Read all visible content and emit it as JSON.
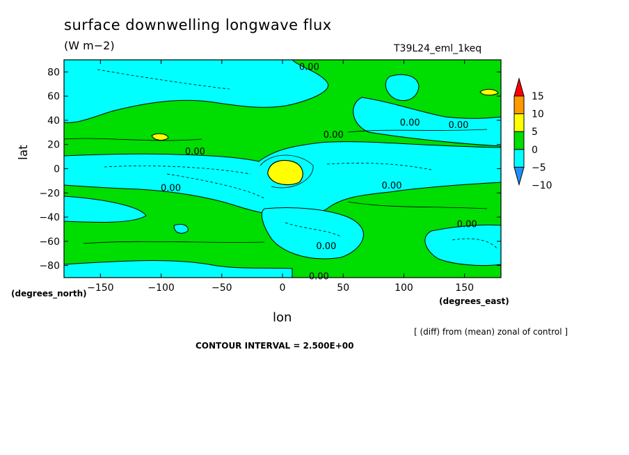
{
  "chart_data": {
    "type": "heatmap",
    "title": "surface downwelling longwave flux",
    "units": "(W m−2)",
    "run_label": "T39L24_eml_1keq",
    "xlabel": "lon",
    "ylabel": "lat",
    "x_units_label": "(degrees_east)",
    "y_units_label": "(degrees_north)",
    "xlim": [
      -180,
      180
    ],
    "ylim": [
      -90,
      90
    ],
    "x_ticks": [
      -150,
      -100,
      -50,
      0,
      50,
      100,
      150
    ],
    "y_ticks": [
      80,
      60,
      40,
      20,
      0,
      -20,
      -40,
      -60,
      -80
    ],
    "x_tick_labels": [
      "−150",
      "−100",
      "−50",
      "0",
      "50",
      "100",
      "150"
    ],
    "y_tick_labels": [
      "80",
      "60",
      "40",
      "20",
      "0",
      "−20",
      "−40",
      "−60",
      "−80"
    ],
    "colorbar": {
      "levels": [
        -10,
        -5,
        0,
        5,
        10,
        15
      ],
      "labels": [
        "15",
        "10",
        "5",
        "0",
        "−5",
        "−10"
      ],
      "colors": [
        "#1e90ff",
        "#00ffff",
        "#00dd00",
        "#ffff00",
        "#ff9900",
        "#ff0000"
      ]
    },
    "contour_labels": [
      {
        "text": "0.00",
        "lon": 22,
        "lat": 84
      },
      {
        "text": "0.00",
        "lon": 105,
        "lat": 38
      },
      {
        "text": "0.00",
        "lon": 145,
        "lat": 36
      },
      {
        "text": "0.00",
        "lon": 42,
        "lat": 28
      },
      {
        "text": "0.00",
        "lon": -72,
        "lat": 14
      },
      {
        "text": "0.00",
        "lon": -92,
        "lat": -16
      },
      {
        "text": "0.00",
        "lon": 90,
        "lat": -14
      },
      {
        "text": "0.00",
        "lon": 152,
        "lat": -46
      },
      {
        "text": "0.00",
        "lon": 36,
        "lat": -64
      },
      {
        "text": "0.00",
        "lon": 30,
        "lat": -89
      }
    ],
    "regions": [
      {
        "value": ">5",
        "lon_range": [
          -8,
          12
        ],
        "lat_range": [
          -10,
          6
        ],
        "color": "#ffff00"
      },
      {
        "value": ">5",
        "lon_range": [
          -102,
          -88
        ],
        "lat_range": [
          22,
          27
        ],
        "color": "#ffff00"
      },
      {
        "value": ">5",
        "lon_range": [
          162,
          176
        ],
        "lat_range": [
          58,
          62
        ],
        "color": "#ffff00"
      },
      {
        "value": "<0",
        "lon_range": [
          -180,
          180
        ],
        "lat_range": [
          -15,
          15
        ],
        "color": "#00ffff"
      }
    ]
  },
  "footnote": "[ (diff) from (mean) zonal of control ]",
  "contour_interval": "CONTOUR INTERVAL = 2.500E+00"
}
